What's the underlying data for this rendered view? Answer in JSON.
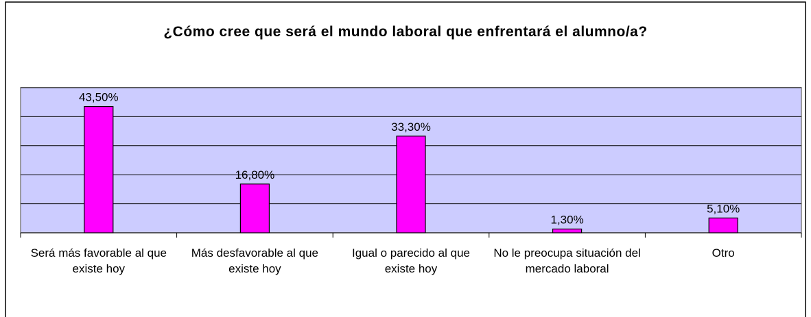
{
  "chart_data": {
    "type": "bar",
    "title": "¿Cómo cree que será el mundo laboral que enfrentará el alumno/a?",
    "categories": [
      "Será más favorable al que existe hoy",
      "Más desfavorable al que existe hoy",
      "Igual o parecido al que existe hoy",
      "No le preocupa situación del mercado laboral",
      "Otro"
    ],
    "values": [
      43.5,
      16.8,
      33.3,
      1.3,
      5.1
    ],
    "value_labels": [
      "43,50%",
      "16,80%",
      "33,30%",
      "1,30%",
      "5,10%"
    ],
    "color": "#ff00ff",
    "ylim": [
      0,
      50
    ],
    "yticks": [
      0,
      10,
      20,
      30,
      40,
      50
    ],
    "grid": true
  }
}
